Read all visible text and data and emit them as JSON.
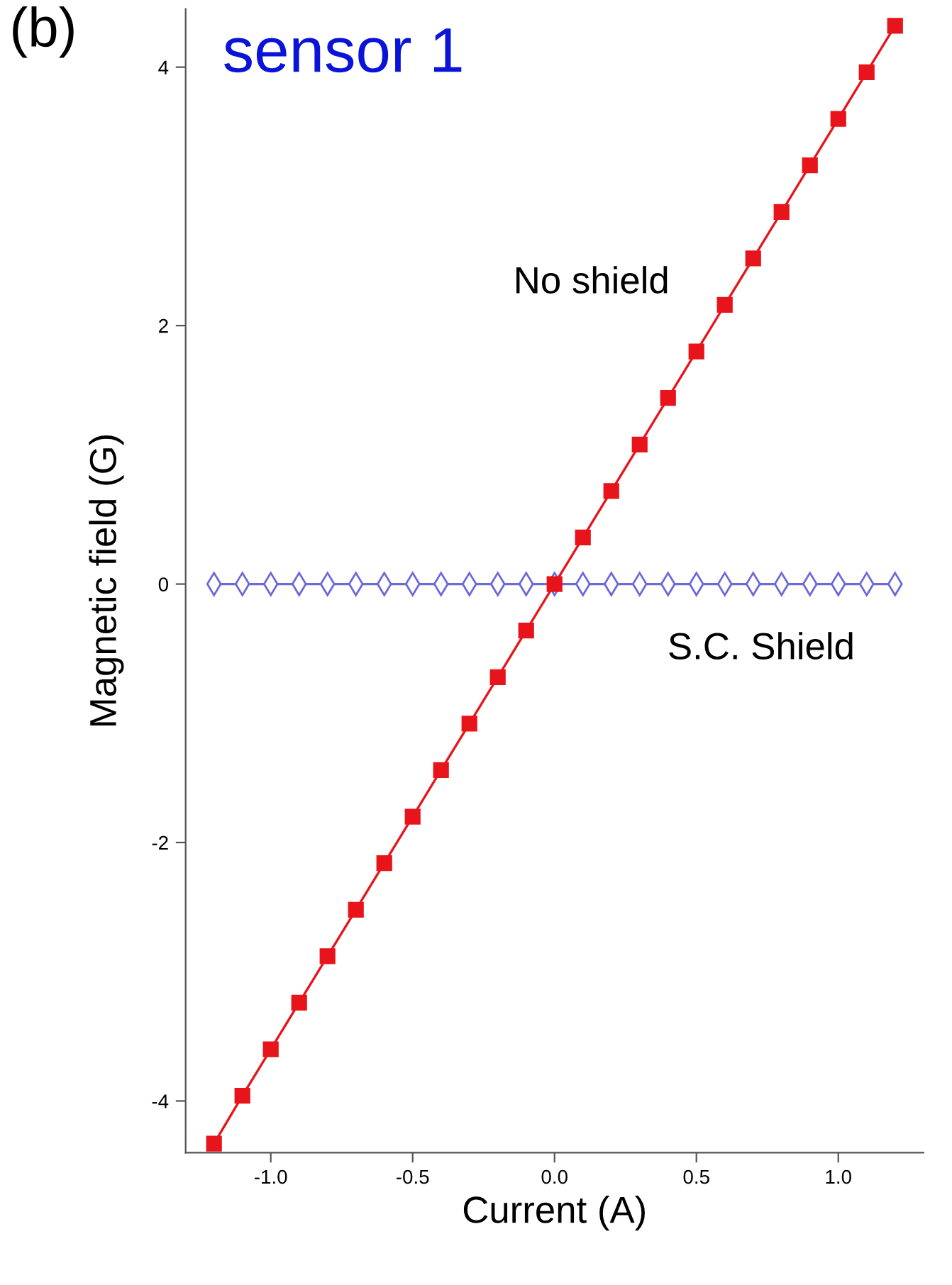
{
  "chart_data": {
    "type": "line",
    "title": "sensor 1",
    "xlabel": "Current (A)",
    "ylabel": "Magnetic field (G)",
    "annotations": [
      "(b)"
    ],
    "x": [
      -1.2,
      -1.1,
      -1.0,
      -0.9,
      -0.8,
      -0.7,
      -0.6,
      -0.5,
      -0.4,
      -0.3,
      -0.2,
      -0.1,
      0.0,
      0.1,
      0.2,
      0.3,
      0.4,
      0.5,
      0.6,
      0.7,
      0.8,
      0.9,
      1.0,
      1.1,
      1.2
    ],
    "series": [
      {
        "name": "No shield",
        "color": "#e8141b",
        "marker": "square",
        "values": [
          -4.33,
          -3.96,
          -3.6,
          -3.24,
          -2.88,
          -2.52,
          -2.16,
          -1.8,
          -1.44,
          -1.08,
          -0.72,
          -0.36,
          0.0,
          0.36,
          0.72,
          1.08,
          1.44,
          1.8,
          2.16,
          2.52,
          2.88,
          3.24,
          3.6,
          3.96,
          4.32
        ]
      },
      {
        "name": "S.C. Shield",
        "color": "#6a6ad8",
        "marker": "diamond",
        "values": [
          0,
          0,
          0,
          0,
          0,
          0,
          0,
          0,
          0,
          0,
          0,
          0,
          0,
          0,
          0,
          0,
          0,
          0,
          0,
          0,
          0,
          0,
          0,
          0,
          0
        ]
      }
    ],
    "xlim": [
      -1.3,
      1.3
    ],
    "ylim": [
      -4.4,
      4.45
    ],
    "xticks": [
      {
        "value": -1.0,
        "label": "-1.0"
      },
      -0.5,
      {
        "value": 0.0,
        "label": "0.0"
      },
      0.5,
      {
        "value": 1.0,
        "label": "1.0"
      }
    ],
    "yticks": [
      -4,
      -2,
      0,
      2,
      4
    ],
    "grid": false,
    "legend": false
  }
}
